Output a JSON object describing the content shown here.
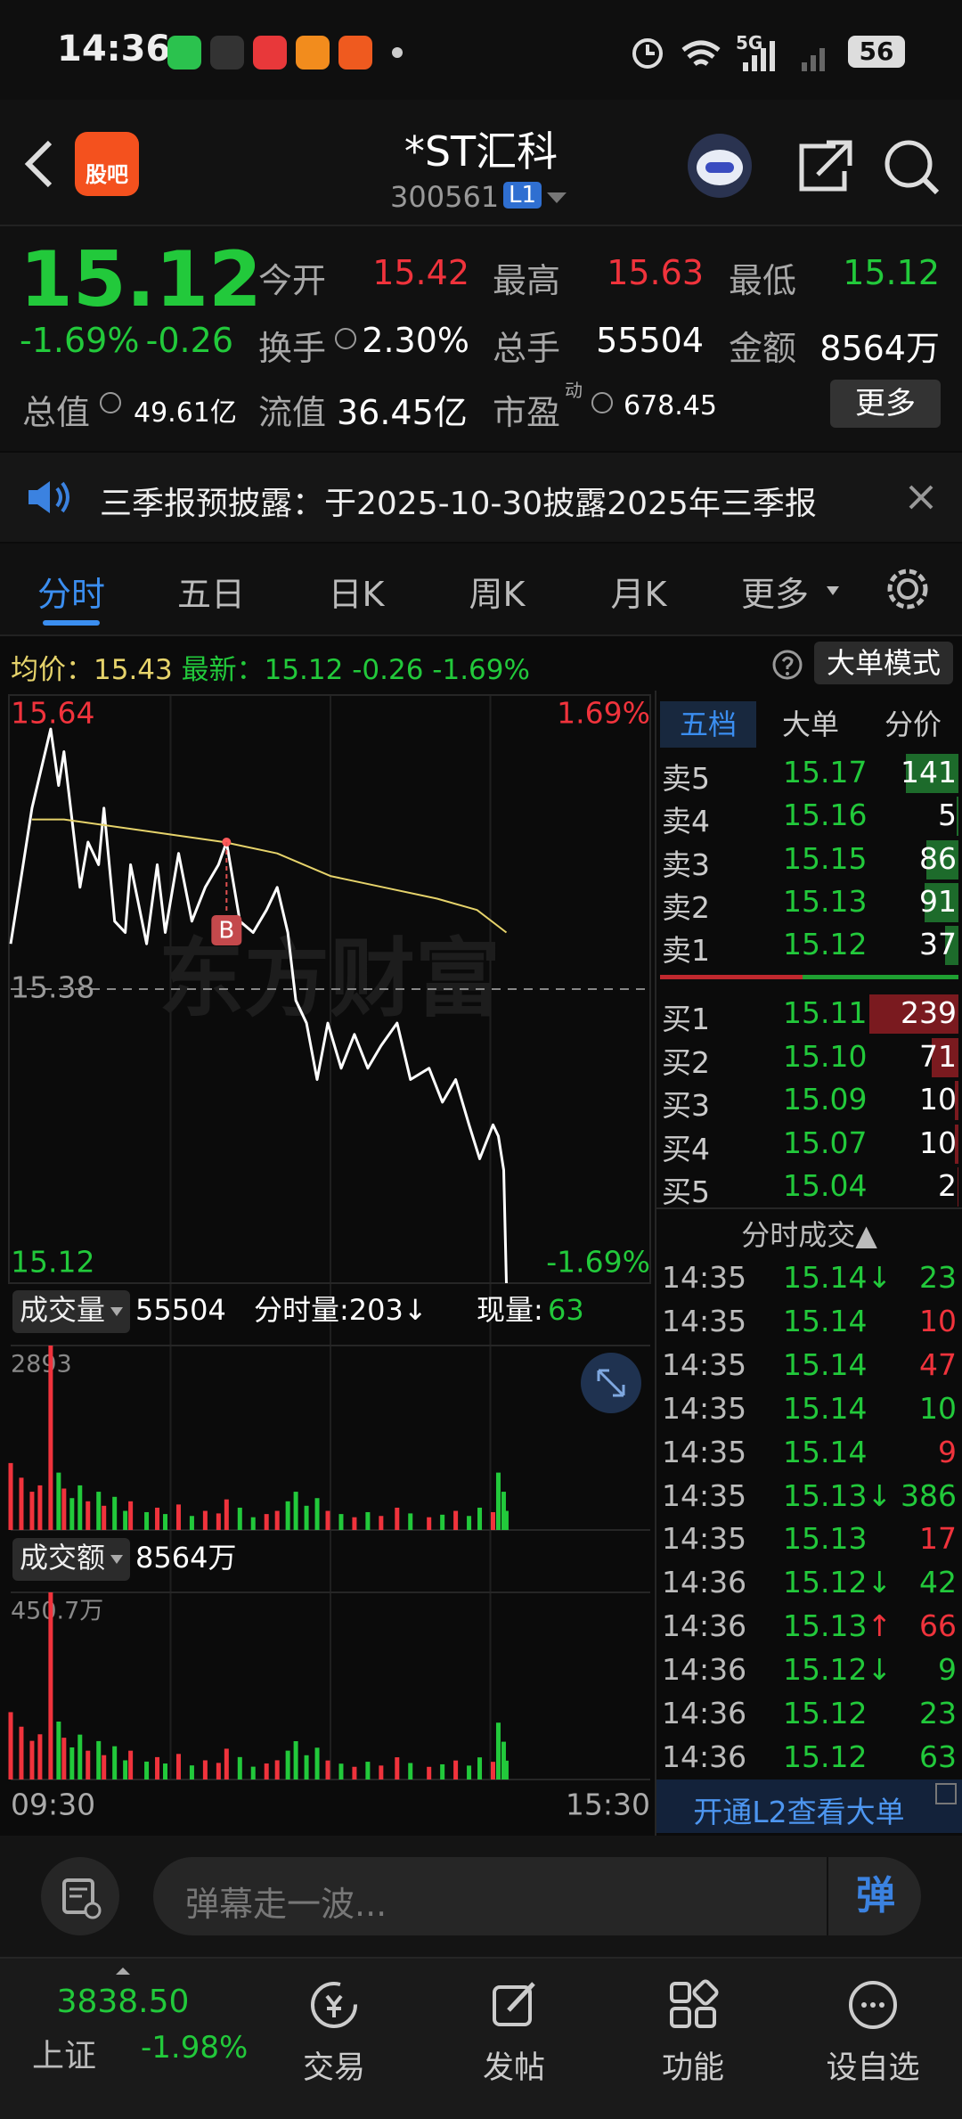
{
  "status_bar": {
    "time": "14:36",
    "network": "5G",
    "battery": "56"
  },
  "header": {
    "logo": "股吧",
    "title": "*ST汇科",
    "code": "300561",
    "level": "L1"
  },
  "quote": {
    "price": "15.12",
    "change_pct": "-1.69%",
    "change": "-0.26",
    "fields": [
      {
        "label": "今开",
        "value": "15.42",
        "color": "#f0333c"
      },
      {
        "label": "最高",
        "value": "15.63",
        "color": "#f0333c"
      },
      {
        "label": "最低",
        "value": "15.12",
        "color": "#22c93b"
      },
      {
        "label": "换手",
        "value": "2.30%",
        "color": "#ffffff"
      },
      {
        "label": "总手",
        "value": "55504",
        "color": "#ffffff"
      },
      {
        "label": "金额",
        "value": "8564万",
        "color": "#ffffff"
      },
      {
        "label": "总值",
        "value": "49.61亿",
        "color": "#ffffff"
      },
      {
        "label": "流值",
        "value": "36.45亿",
        "color": "#ffffff"
      },
      {
        "label": "市盈",
        "label_sup": "动",
        "value": "678.45",
        "color": "#ffffff"
      }
    ],
    "more": "更多"
  },
  "notice": "三季报预披露：于2025-10-30披露2025年三季报",
  "tabs": {
    "items": [
      "分时",
      "五日",
      "日K",
      "周K",
      "月K",
      "更多"
    ],
    "selected": 0
  },
  "info_bar": {
    "avg_label": "均价：",
    "avg": "15.43",
    "latest_label": "最新：",
    "latest": "15.12",
    "change": "-0.26",
    "change_pct": "-1.69%",
    "mode": "大单模式"
  },
  "intraday_chart": {
    "type": "line",
    "watermark": "东方财富",
    "ylim": [
      15.12,
      15.64
    ],
    "yticks": [
      15.12,
      15.38,
      15.64
    ],
    "pct_ticks": [
      {
        "value": 15.64,
        "label": "1.69%"
      },
      {
        "value": 15.12,
        "label": "-1.69%"
      }
    ],
    "xlim": [
      0,
      240
    ],
    "xticks": [
      {
        "value": 0,
        "label": "09:30"
      },
      {
        "value": 240,
        "label": "15:30"
      }
    ],
    "trade_marker": "B",
    "series": [
      {
        "color": "#ffffff",
        "x": [
          0,
          4,
          8,
          11,
          15,
          18,
          20,
          23,
          26,
          29,
          33,
          35,
          39,
          43,
          45,
          51,
          55,
          58,
          63,
          68,
          73,
          78,
          81,
          86,
          91,
          96,
          100,
          104,
          107,
          111,
          115,
          119,
          124,
          129,
          134,
          139,
          145,
          150,
          157,
          162,
          167,
          172,
          176,
          181,
          183,
          185,
          186
        ],
        "values": [
          15.42,
          15.48,
          15.54,
          15.57,
          15.61,
          15.56,
          15.59,
          15.53,
          15.47,
          15.51,
          15.49,
          15.54,
          15.44,
          15.43,
          15.49,
          15.42,
          15.49,
          15.43,
          15.5,
          15.44,
          15.47,
          15.49,
          15.51,
          15.44,
          15.43,
          15.45,
          15.47,
          15.43,
          15.37,
          15.35,
          15.3,
          15.35,
          15.31,
          15.34,
          15.31,
          15.33,
          15.35,
          15.3,
          15.31,
          15.28,
          15.3,
          15.26,
          15.23,
          15.26,
          15.25,
          15.22,
          15.12
        ]
      },
      {
        "color": "#e6d36b",
        "x": [
          8,
          20,
          50,
          80,
          100,
          120,
          140,
          160,
          175,
          186
        ],
        "values": [
          15.53,
          15.53,
          15.52,
          15.51,
          15.5,
          15.48,
          15.47,
          15.46,
          15.45,
          15.43
        ]
      }
    ]
  },
  "volume_chart": {
    "type": "bar",
    "label": "成交量",
    "total": "55504",
    "minute_volume": "分时量:203↓",
    "current_label": "现量:",
    "current": "63",
    "ylim": [
      0,
      2893
    ],
    "yticks": [
      2893
    ],
    "values": [
      1050,
      820,
      600,
      700,
      2893,
      900,
      650,
      500,
      700,
      450,
      600,
      380,
      520,
      300,
      450,
      280,
      350,
      250,
      400,
      220,
      300,
      260,
      480,
      350,
      200,
      250,
      300,
      450,
      600,
      380,
      500,
      300,
      250,
      200,
      280,
      220,
      350,
      260,
      200,
      240,
      300,
      220,
      350,
      280,
      900,
      600,
      300
    ]
  },
  "amount_chart": {
    "type": "bar",
    "label": "成交额",
    "total": "8564万",
    "ylim": [
      0,
      450.7
    ],
    "yticks": [
      {
        "value": 450.7,
        "label": "450.7万"
      }
    ],
    "values": [
      162.2,
      127.2,
      93.1,
      108.9,
      450.7,
      139.5,
      100.6,
      77.3,
      108.1,
      69.4,
      92.5,
      58.6,
      80.1,
      46.2,
      69.4,
      43.1,
      53.9,
      38.5,
      61.6,
      33.9,
      46.2,
      40.0,
      74.2,
      54.0,
      30.9,
      38.6,
      46.3,
      69.5,
      92.3,
      58.4,
      76.6,
      45.8,
      38.2,
      30.6,
      42.8,
      33.6,
      53.5,
      39.7,
      30.5,
      36.6,
      45.8,
      33.5,
      53.3,
      42.6,
      136.9,
      91.0,
      45.4
    ]
  },
  "order_book": {
    "tabs": [
      "五档",
      "大单",
      "分价"
    ],
    "asks": [
      {
        "label": "卖5",
        "price": "15.17",
        "volume": 141
      },
      {
        "label": "卖4",
        "price": "15.16",
        "volume": 5
      },
      {
        "label": "卖3",
        "price": "15.15",
        "volume": 86
      },
      {
        "label": "卖2",
        "price": "15.13",
        "volume": 91
      },
      {
        "label": "卖1",
        "price": "15.12",
        "volume": 37
      }
    ],
    "bids": [
      {
        "label": "买1",
        "price": "15.11",
        "volume": 239
      },
      {
        "label": "买2",
        "price": "15.10",
        "volume": 71
      },
      {
        "label": "买3",
        "price": "15.09",
        "volume": 10
      },
      {
        "label": "买4",
        "price": "15.07",
        "volume": 10
      },
      {
        "label": "买5",
        "price": "15.04",
        "volume": 2
      }
    ]
  },
  "trades": {
    "title": "分时成交▲",
    "rows": [
      {
        "time": "14:35",
        "price": "15.14",
        "arrow": "↓",
        "volume": "23",
        "color": "#22c93b"
      },
      {
        "time": "14:35",
        "price": "15.14",
        "volume": "10",
        "color": "#f0333c"
      },
      {
        "time": "14:35",
        "price": "15.14",
        "volume": "47",
        "color": "#f0333c"
      },
      {
        "time": "14:35",
        "price": "15.14",
        "volume": "10",
        "color": "#22c93b"
      },
      {
        "time": "14:35",
        "price": "15.14",
        "volume": "9",
        "color": "#f0333c"
      },
      {
        "time": "14:35",
        "price": "15.13",
        "arrow": "↓",
        "volume": "386",
        "color": "#22c93b"
      },
      {
        "time": "14:35",
        "price": "15.13",
        "volume": "17",
        "color": "#f0333c"
      },
      {
        "time": "14:36",
        "price": "15.12",
        "arrow": "↓",
        "volume": "42",
        "color": "#22c93b"
      },
      {
        "time": "14:36",
        "price": "15.13",
        "arrow": "↑",
        "volume": "66",
        "color": "#f0333c"
      },
      {
        "time": "14:36",
        "price": "15.12",
        "arrow": "↓",
        "volume": "9",
        "color": "#22c93b"
      },
      {
        "time": "14:36",
        "price": "15.12",
        "volume": "23",
        "color": "#22c93b"
      },
      {
        "time": "14:36",
        "price": "15.12",
        "volume": "63",
        "color": "#22c93b"
      }
    ],
    "l2_banner": "开通L2查看大单"
  },
  "comment_bar": {
    "placeholder": "弹幕走一波...",
    "button": "弹"
  },
  "bottom_nav": {
    "index": {
      "value": "3838.50",
      "name": "上证",
      "change": "-1.98%"
    },
    "items": [
      "交易",
      "发帖",
      "功能",
      "设自选"
    ]
  }
}
